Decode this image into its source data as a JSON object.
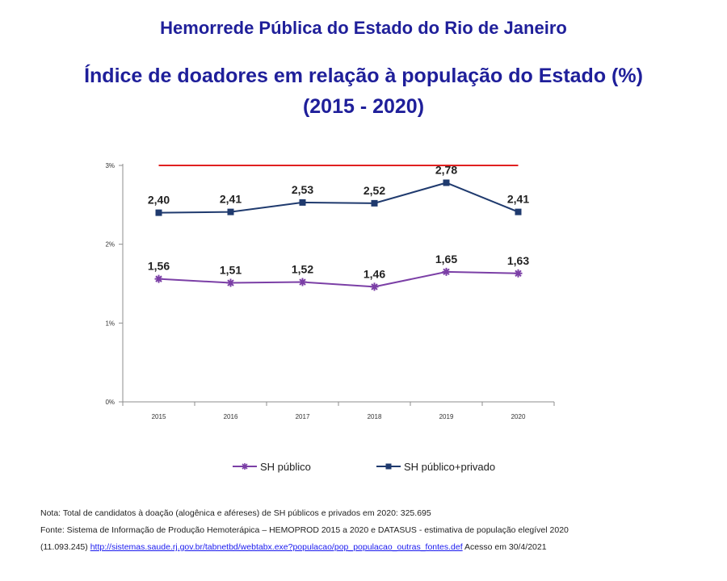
{
  "supertitle": "Hemorrede Pública do Estado do Rio de Janeiro",
  "chart_data": {
    "type": "line",
    "title": "Índice de doadores em relação à população do Estado (%)",
    "subtitle": "(2015 - 2020)",
    "categories": [
      "2015",
      "2016",
      "2017",
      "2018",
      "2019",
      "2020"
    ],
    "y_ticks": [
      {
        "value": 0,
        "label": "0%"
      },
      {
        "value": 1,
        "label": "1%"
      },
      {
        "value": 2,
        "label": "2%"
      },
      {
        "value": 3,
        "label": "3%"
      }
    ],
    "ylim": [
      0,
      3
    ],
    "grid": false,
    "legend_position": "bottom",
    "reference_line": {
      "value": 3,
      "color": "#e02020"
    },
    "series": [
      {
        "name": "SH público",
        "values": [
          1.56,
          1.51,
          1.52,
          1.46,
          1.65,
          1.63
        ],
        "labels": [
          "1,56",
          "1,51",
          "1,52",
          "1,46",
          "1,65",
          "1,63"
        ],
        "color": "#7b3fa6",
        "marker": "star"
      },
      {
        "name": "SH público+privado",
        "values": [
          2.4,
          2.41,
          2.53,
          2.52,
          2.78,
          2.41
        ],
        "labels": [
          "2,40",
          "2,41",
          "2,53",
          "2,52",
          "2,78",
          "2,41"
        ],
        "color": "#1f3a6e",
        "marker": "square"
      }
    ]
  },
  "notes": {
    "note": "Nota: Total de candidatos à doação (alogênica e aféreses) de SH públicos e privados em 2020: 325.695",
    "source": "Fonte: Sistema de Informação de Produção Hemoterápica – HEMOPROD 2015 a 2020 e DATASUS - estimativa de população elegível 2020",
    "source_prefix": "(11.093.245)",
    "link": "http://sistemas.saude.rj.gov.br/tabnetbd/webtabx.exe?populacao/pop_populacao_outras_fontes.def",
    "access": "Acesso em 30/4/2021"
  }
}
